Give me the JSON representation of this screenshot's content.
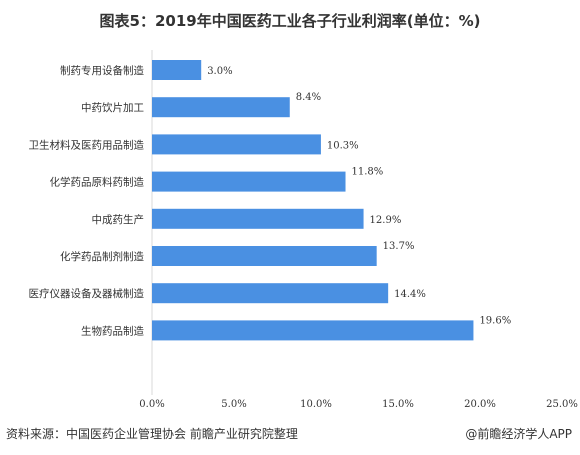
{
  "title": "图表5：2019年中国医药工业各子行业利润率(单位：%)",
  "footer": {
    "source": "资料来源：中国医药企业管理协会 前瞻产业研究院整理",
    "brand": "@前瞻经济学人APP"
  },
  "colors": {
    "bar": "#4a90e2",
    "grid": "#e6e6e6",
    "text": "#333333"
  },
  "chart_data": {
    "type": "bar",
    "orientation": "horizontal",
    "categories": [
      "制药专用设备制造",
      "中药饮片加工",
      "卫生材料及医药用品制造",
      "化学药品原料药制造",
      "中成药生产",
      "化学药品制剂制造",
      "医疗仪器设备及器械制造",
      "生物药品制造"
    ],
    "values": [
      3.0,
      8.4,
      10.3,
      11.8,
      12.9,
      13.7,
      14.4,
      19.6
    ],
    "value_labels": [
      "3.0%",
      "8.4%",
      "10.3%",
      "11.8%",
      "12.9%",
      "13.7%",
      "14.4%",
      "19.6%"
    ],
    "xlim": [
      0,
      25
    ],
    "xticks": [
      0,
      5,
      10,
      15,
      20,
      25
    ],
    "xtick_labels": [
      "0.0%",
      "5.0%",
      "10.0%",
      "15.0%",
      "20.0%",
      "25.0%"
    ],
    "grid": false,
    "legend": "none"
  }
}
